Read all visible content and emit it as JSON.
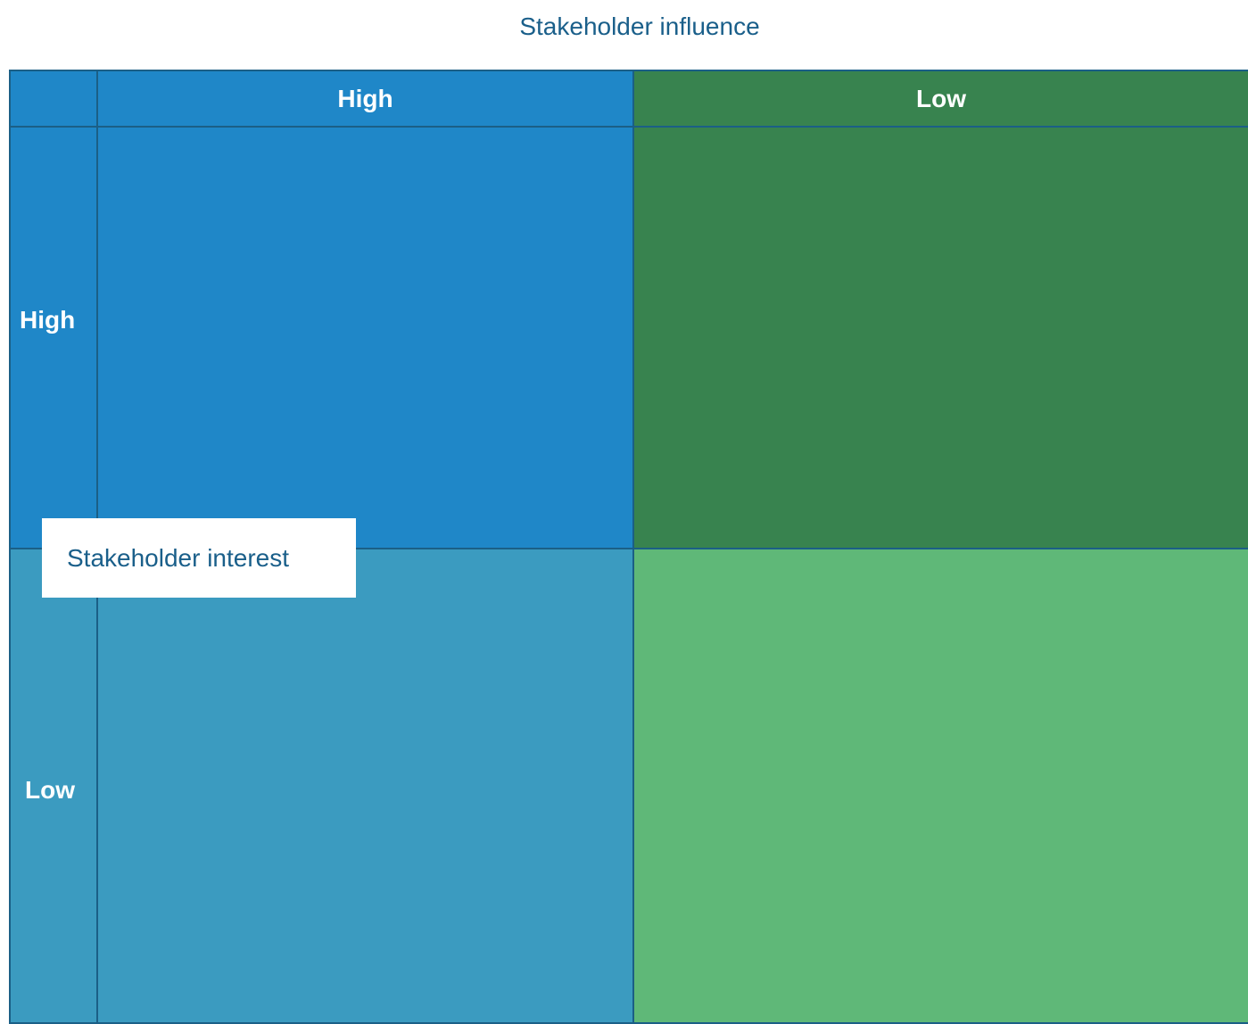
{
  "title": "Stakeholder influence",
  "columns": [
    "High",
    "Low"
  ],
  "rows": [
    "High",
    "Low"
  ],
  "callout": "Stakeholder interest",
  "colors": {
    "high_high": "#1f87c8",
    "high_low": "#38834f",
    "low_high": "#3b9bc0",
    "low_low": "#5fb878",
    "border": "#1b5f86",
    "title_text": "#1a5f8a"
  }
}
